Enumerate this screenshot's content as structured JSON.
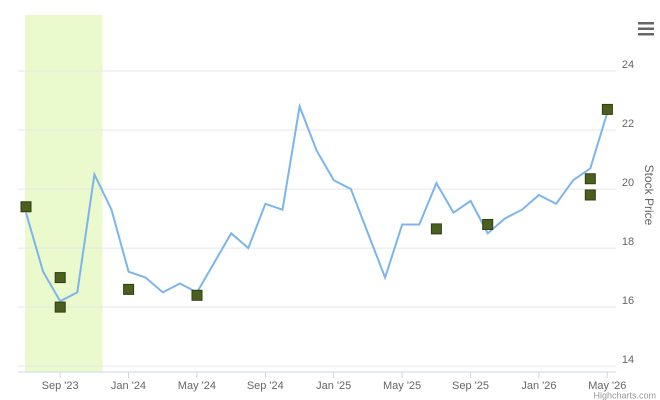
{
  "chart_data": {
    "type": "line",
    "y_axis_label": "Stock Price",
    "credits": "Highcharts.com",
    "ylim": [
      13.8,
      25.9
    ],
    "yticks": [
      14,
      16,
      18,
      20,
      22,
      24
    ],
    "grid": true,
    "xticks": [
      {
        "value": "2023-09",
        "label": "Sep '23"
      },
      {
        "value": "2024-01",
        "label": "Jan '24"
      },
      {
        "value": "2024-05",
        "label": "May '24"
      },
      {
        "value": "2024-09",
        "label": "Sep '24"
      },
      {
        "value": "2025-01",
        "label": "Jan '25"
      },
      {
        "value": "2025-05",
        "label": "May '25"
      },
      {
        "value": "2025-09",
        "label": "Sep '25"
      },
      {
        "value": "2026-01",
        "label": "Jan '26"
      },
      {
        "value": "2026-05",
        "label": "May '26"
      }
    ],
    "plot_band": {
      "from": "2023-08",
      "to": "2023-12",
      "color": "#eafacc"
    },
    "series": [
      {
        "type": "line",
        "color": "#7cb5ec",
        "x": [
          "2023-08",
          "2023-09",
          "2023-10",
          "2023-11",
          "2023-12",
          "2024-01",
          "2024-02",
          "2024-03",
          "2024-04",
          "2024-05",
          "2024-06",
          "2024-07",
          "2024-08",
          "2024-09",
          "2024-10",
          "2024-11",
          "2024-12",
          "2025-01",
          "2025-02",
          "2025-03",
          "2025-04",
          "2025-05",
          "2025-06",
          "2025-07",
          "2025-08",
          "2025-09",
          "2025-10",
          "2025-11",
          "2025-12",
          "2026-01",
          "2026-02",
          "2026-03",
          "2026-04",
          "2026-05",
          "2026-06"
        ],
        "values": [
          19.2,
          17.2,
          16.2,
          16.5,
          20.5,
          19.3,
          17.2,
          17.0,
          16.5,
          16.8,
          16.5,
          17.5,
          18.5,
          18.0,
          19.5,
          19.3,
          22.8,
          21.3,
          20.3,
          20.0,
          18.5,
          17.0,
          18.8,
          18.8,
          20.2,
          19.2,
          19.6,
          18.5,
          19.0,
          19.3,
          19.8,
          19.5,
          20.3,
          20.7,
          22.6
        ]
      },
      {
        "type": "markers",
        "color": "#4b5f1e",
        "x": [
          "2023-08",
          "2023-10",
          "2023-10",
          "2024-02",
          "2024-06",
          "2025-08",
          "2025-11",
          "2026-05",
          "2026-05",
          "2026-06"
        ],
        "values": [
          19.4,
          17.0,
          16.0,
          16.6,
          16.4,
          18.65,
          18.8,
          19.8,
          20.35,
          22.7
        ]
      }
    ]
  }
}
